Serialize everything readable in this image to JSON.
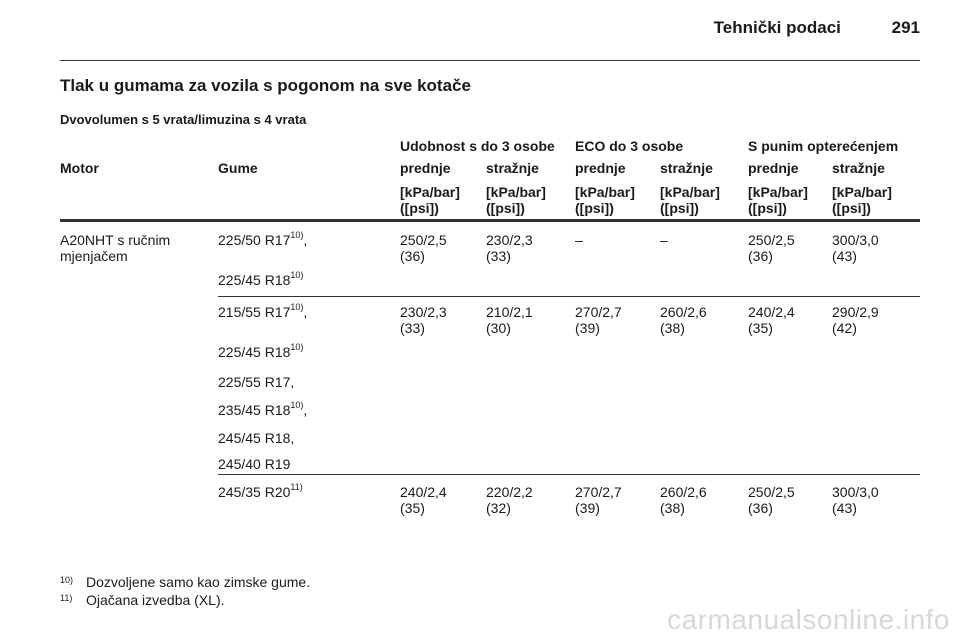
{
  "header": {
    "title": "Tehnički podaci",
    "page_number": "291"
  },
  "section_title": "Tlak u gumama za vozila s pogonom na sve kotače",
  "subtitle": "Dvovolumen s 5 vrata/limuzina s 4 vrata",
  "table": {
    "group_headers": [
      "Udobnost s do 3 osobe",
      "ECO do 3 osobe",
      "S punim opterećenjem"
    ],
    "motor_label": "Motor",
    "tyres_label": "Gume",
    "sub_headers": [
      "prednje",
      "stražnje",
      "prednje",
      "stražnje",
      "prednje",
      "stražnje"
    ],
    "unit_line1": "[kPa/bar]",
    "unit_line2": "([psi])",
    "motor": "A20NHT s ručnim mjenjačem",
    "rows": [
      {
        "tyres": [
          {
            "text": "225/50 R17",
            "sup": "10)",
            "suffix": ","
          },
          {
            "text": "225/45 R18",
            "sup": "10)",
            "suffix": ""
          }
        ],
        "values": [
          {
            "a": "250/2,5",
            "b": "(36)"
          },
          {
            "a": "230/2,3",
            "b": "(33)"
          },
          {
            "a": "–",
            "b": ""
          },
          {
            "a": "–",
            "b": ""
          },
          {
            "a": "250/2,5",
            "b": "(36)"
          },
          {
            "a": "300/3,0",
            "b": "(43)"
          }
        ]
      },
      {
        "tyres": [
          {
            "text": "215/55 R17",
            "sup": "10)",
            "suffix": ","
          },
          {
            "text": "225/45 R18",
            "sup": "10)",
            "suffix": ""
          },
          {
            "text": "225/55 R17,",
            "sup": "",
            "suffix": ""
          },
          {
            "text": "235/45 R18",
            "sup": "10)",
            "suffix": ","
          },
          {
            "text": "245/45 R18,",
            "sup": "",
            "suffix": ""
          },
          {
            "text": "245/40 R19",
            "sup": "",
            "suffix": ""
          }
        ],
        "values": [
          {
            "a": "230/2,3",
            "b": "(33)"
          },
          {
            "a": "210/2,1",
            "b": "(30)"
          },
          {
            "a": "270/2,7",
            "b": "(39)"
          },
          {
            "a": "260/2,6",
            "b": "(38)"
          },
          {
            "a": "240/2,4",
            "b": "(35)"
          },
          {
            "a": "290/2,9",
            "b": "(42)"
          }
        ]
      },
      {
        "tyres": [
          {
            "text": "245/35 R20",
            "sup": "11)",
            "suffix": ""
          }
        ],
        "values": [
          {
            "a": "240/2,4",
            "b": "(35)"
          },
          {
            "a": "220/2,2",
            "b": "(32)"
          },
          {
            "a": "270/2,7",
            "b": "(39)"
          },
          {
            "a": "260/2,6",
            "b": "(38)"
          },
          {
            "a": "250/2,5",
            "b": "(36)"
          },
          {
            "a": "300/3,0",
            "b": "(43)"
          }
        ]
      }
    ]
  },
  "footnotes": [
    {
      "num": "10)",
      "text": "Dozvoljene samo kao zimske gume."
    },
    {
      "num": "11)",
      "text": "Ojačana izvedba (XL)."
    }
  ],
  "watermark": "carmanualsonline.info"
}
